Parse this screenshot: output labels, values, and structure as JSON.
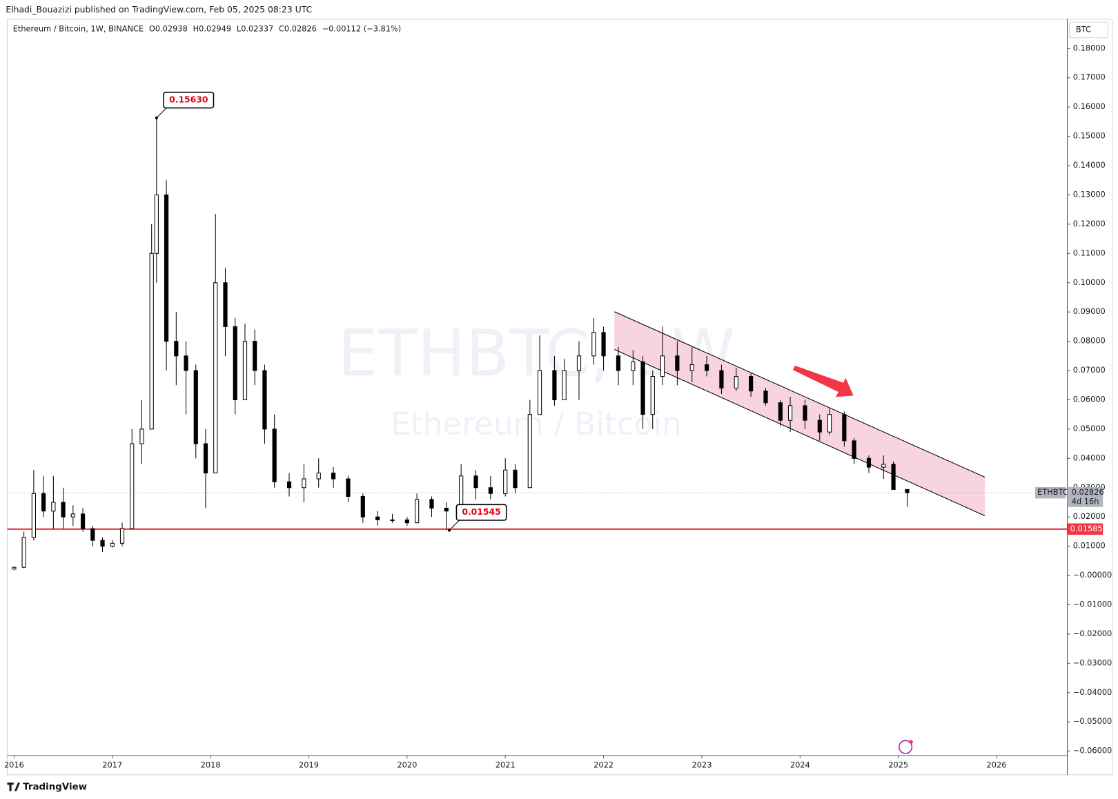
{
  "header": {
    "publisher": "Elhadi_Bouazizi published on TradingView.com, Feb 05, 2025 08:23 UTC"
  },
  "legend": {
    "symbol_line": "Ethereum / Bitcoin, 1W, BINANCE",
    "ohlc": [
      {
        "key": "O",
        "value": "0.02938"
      },
      {
        "key": "H",
        "value": "0.02949"
      },
      {
        "key": "L",
        "value": "0.02337"
      },
      {
        "key": "C",
        "value": "0.02826"
      }
    ],
    "change": "−0.00112 (−3.81%)"
  },
  "watermark": {
    "symbol": "ETHBTC, 1W",
    "name": "Ethereum / Bitcoin"
  },
  "footer": {
    "brand": "TradingView"
  },
  "chart_data": {
    "type": "candlestick",
    "currency": "BTC",
    "up_color": "#ffffff",
    "down_color": "#000000",
    "wick_color": "#000000",
    "x": [
      2016.0,
      2016.1,
      2016.2,
      2016.3,
      2016.4,
      2016.5,
      2016.6,
      2016.7,
      2016.8,
      2016.9,
      2017.0,
      2017.1,
      2017.2,
      2017.3,
      2017.4,
      2017.45,
      2017.55,
      2017.65,
      2017.75,
      2017.85,
      2017.95,
      2018.05,
      2018.15,
      2018.25,
      2018.35,
      2018.45,
      2018.55,
      2018.65,
      2018.8,
      2018.95,
      2019.1,
      2019.25,
      2019.4,
      2019.55,
      2019.7,
      2019.85,
      2020.0,
      2020.1,
      2020.25,
      2020.4,
      2020.55,
      2020.7,
      2020.85,
      2021.0,
      2021.1,
      2021.25,
      2021.35,
      2021.5,
      2021.6,
      2021.75,
      2021.9,
      2022.0,
      2022.15,
      2022.3,
      2022.4,
      2022.5,
      2022.6,
      2022.75,
      2022.9,
      2023.05,
      2023.2,
      2023.35,
      2023.5,
      2023.65,
      2023.8,
      2023.9,
      2024.05,
      2024.2,
      2024.3,
      2024.45,
      2024.55,
      2024.7,
      2024.85,
      2024.95,
      2025.09
    ],
    "open": [
      0.0022,
      0.0028,
      0.013,
      0.028,
      0.022,
      0.025,
      0.02,
      0.021,
      0.016,
      0.012,
      0.01,
      0.011,
      0.016,
      0.045,
      0.05,
      0.11,
      0.13,
      0.08,
      0.075,
      0.07,
      0.045,
      0.035,
      0.1,
      0.085,
      0.06,
      0.08,
      0.07,
      0.05,
      0.032,
      0.03,
      0.033,
      0.035,
      0.033,
      0.027,
      0.02,
      0.019,
      0.019,
      0.018,
      0.026,
      0.023,
      0.022,
      0.034,
      0.03,
      0.028,
      0.036,
      0.03,
      0.055,
      0.07,
      0.06,
      0.07,
      0.075,
      0.083,
      0.075,
      0.07,
      0.073,
      0.055,
      0.068,
      0.075,
      0.07,
      0.072,
      0.07,
      0.064,
      0.068,
      0.063,
      0.059,
      0.053,
      0.058,
      0.053,
      0.049,
      0.055,
      0.046,
      0.04,
      0.037,
      0.038,
      0.02938
    ],
    "high": [
      0.003,
      0.015,
      0.036,
      0.034,
      0.034,
      0.03,
      0.024,
      0.023,
      0.017,
      0.013,
      0.012,
      0.018,
      0.05,
      0.06,
      0.12,
      0.1563,
      0.135,
      0.09,
      0.08,
      0.072,
      0.05,
      0.1235,
      0.105,
      0.088,
      0.086,
      0.084,
      0.072,
      0.055,
      0.035,
      0.038,
      0.04,
      0.037,
      0.034,
      0.028,
      0.022,
      0.021,
      0.02,
      0.028,
      0.027,
      0.025,
      0.038,
      0.036,
      0.034,
      0.04,
      0.038,
      0.06,
      0.082,
      0.075,
      0.074,
      0.08,
      0.088,
      0.085,
      0.078,
      0.077,
      0.075,
      0.07,
      0.085,
      0.08,
      0.078,
      0.075,
      0.072,
      0.071,
      0.069,
      0.064,
      0.06,
      0.061,
      0.06,
      0.055,
      0.057,
      0.056,
      0.047,
      0.041,
      0.041,
      0.039,
      0.02949
    ],
    "low": [
      0.0018,
      0.0025,
      0.012,
      0.02,
      0.016,
      0.016,
      0.017,
      0.015,
      0.01,
      0.008,
      0.0095,
      0.01,
      0.016,
      0.038,
      0.05,
      0.1,
      0.07,
      0.065,
      0.055,
      0.04,
      0.023,
      0.035,
      0.075,
      0.055,
      0.06,
      0.065,
      0.045,
      0.03,
      0.027,
      0.025,
      0.03,
      0.03,
      0.025,
      0.018,
      0.017,
      0.018,
      0.017,
      0.018,
      0.02,
      0.01545,
      0.022,
      0.026,
      0.026,
      0.027,
      0.028,
      0.03,
      0.055,
      0.058,
      0.06,
      0.06,
      0.072,
      0.07,
      0.065,
      0.065,
      0.05,
      0.05,
      0.065,
      0.065,
      0.066,
      0.068,
      0.062,
      0.063,
      0.061,
      0.058,
      0.051,
      0.049,
      0.05,
      0.046,
      0.048,
      0.044,
      0.038,
      0.035,
      0.033,
      0.031,
      0.02337
    ],
    "close": [
      0.0028,
      0.013,
      0.028,
      0.022,
      0.025,
      0.02,
      0.021,
      0.016,
      0.012,
      0.01,
      0.011,
      0.016,
      0.045,
      0.05,
      0.11,
      0.13,
      0.08,
      0.075,
      0.07,
      0.045,
      0.035,
      0.1,
      0.085,
      0.06,
      0.08,
      0.07,
      0.05,
      0.032,
      0.03,
      0.033,
      0.035,
      0.033,
      0.027,
      0.02,
      0.019,
      0.019,
      0.018,
      0.026,
      0.023,
      0.022,
      0.034,
      0.03,
      0.028,
      0.036,
      0.03,
      0.055,
      0.07,
      0.06,
      0.07,
      0.075,
      0.083,
      0.075,
      0.07,
      0.073,
      0.055,
      0.068,
      0.075,
      0.07,
      0.072,
      0.07,
      0.064,
      0.068,
      0.063,
      0.059,
      0.053,
      0.058,
      0.053,
      0.049,
      0.055,
      0.046,
      0.04,
      0.037,
      0.038,
      0.02938,
      0.02826
    ],
    "xlim": [
      2015.93,
      2026.72
    ],
    "xticks": [
      2016,
      2017,
      2018,
      2019,
      2020,
      2021,
      2022,
      2023,
      2024,
      2025,
      2026
    ],
    "ylim": [
      -0.0615,
      0.19
    ],
    "yticks": [
      {
        "value": 0.18,
        "label": "0.18000"
      },
      {
        "value": 0.17,
        "label": "0.17000"
      },
      {
        "value": 0.16,
        "label": "0.16000"
      },
      {
        "value": 0.15,
        "label": "0.15000"
      },
      {
        "value": 0.14,
        "label": "0.14000"
      },
      {
        "value": 0.13,
        "label": "0.13000"
      },
      {
        "value": 0.12,
        "label": "0.12000"
      },
      {
        "value": 0.11,
        "label": "0.11000"
      },
      {
        "value": 0.1,
        "label": "0.10000"
      },
      {
        "value": 0.09,
        "label": "0.09000"
      },
      {
        "value": 0.08,
        "label": "0.08000"
      },
      {
        "value": 0.07,
        "label": "0.07000"
      },
      {
        "value": 0.06,
        "label": "0.06000"
      },
      {
        "value": 0.05,
        "label": "0.05000"
      },
      {
        "value": 0.04,
        "label": "0.04000"
      },
      {
        "value": 0.03,
        "label": "0.03000"
      },
      {
        "value": 0.02,
        "label": "0.02000"
      },
      {
        "value": 0.01,
        "label": "0.01000"
      },
      {
        "value": 0,
        "label": "−0.00000"
      },
      {
        "value": -0.01,
        "label": "−0.01000"
      },
      {
        "value": -0.02,
        "label": "−0.02000"
      },
      {
        "value": -0.03,
        "label": "−0.03000"
      },
      {
        "value": -0.04,
        "label": "−0.04000"
      },
      {
        "value": -0.05,
        "label": "−0.05000"
      },
      {
        "value": -0.06,
        "label": "−0.06000"
      }
    ],
    "annotations": [
      {
        "x": 2017.45,
        "y": 0.1563,
        "label": "0.15630"
      },
      {
        "x": 2020.43,
        "y": 0.01545,
        "label": "0.01545"
      }
    ],
    "level": {
      "value": 0.01585,
      "label": "0.01585",
      "color": "#f23645"
    },
    "last_price": {
      "symbol": "ETHBTC",
      "value": 0.02826,
      "label": "0.02826",
      "countdown": "4d 16h"
    },
    "channel": {
      "color": "#f8d3e0",
      "upper_x": [
        2022.11,
        2025.88
      ],
      "upper_y": [
        0.0901,
        0.0336
      ],
      "lower_x": [
        2022.11,
        2025.88
      ],
      "lower_y": [
        0.0772,
        0.0204
      ]
    }
  }
}
